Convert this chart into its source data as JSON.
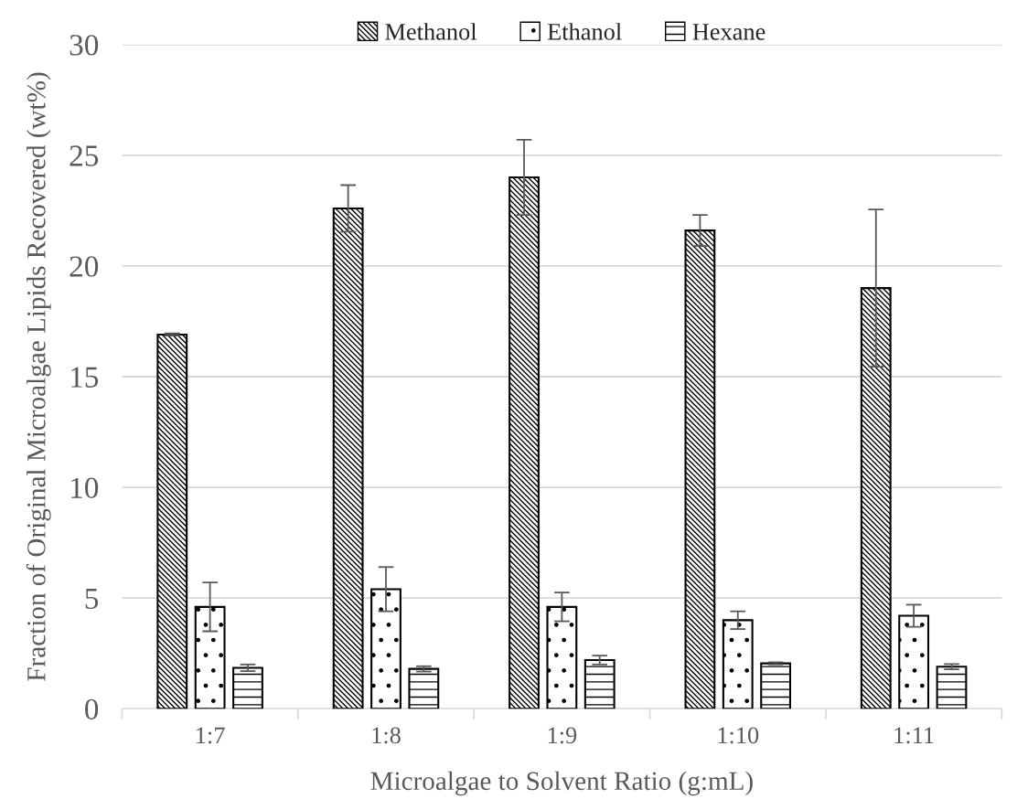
{
  "chart_data": {
    "type": "bar",
    "xlabel": "Microalgae to Solvent Ratio (g:mL)",
    "ylabel": "Fraction of Original Microalgae Lipids Recovered (wt%)",
    "categories": [
      "1:7",
      "1:8",
      "1:9",
      "1:10",
      "1:11"
    ],
    "series": [
      {
        "name": "Methanol",
        "color": "#000000",
        "values": [
          16.9,
          22.6,
          24.0,
          21.6,
          19.0
        ],
        "errors": [
          0.05,
          1.05,
          1.7,
          0.7,
          3.55
        ]
      },
      {
        "name": "Ethanol",
        "color": "#000000",
        "values": [
          4.6,
          5.4,
          4.6,
          4.0,
          4.2
        ],
        "errors": [
          1.1,
          1.0,
          0.65,
          0.4,
          0.5
        ]
      },
      {
        "name": "Hexane",
        "color": "#000000",
        "values": [
          1.85,
          1.8,
          2.2,
          2.05,
          1.9
        ],
        "errors": [
          0.15,
          0.12,
          0.2,
          0.05,
          0.12
        ]
      }
    ],
    "ylim": [
      0,
      30
    ],
    "yticks": [
      0,
      5,
      10,
      15,
      20,
      25,
      30
    ],
    "grid": "y",
    "legend": "top"
  }
}
